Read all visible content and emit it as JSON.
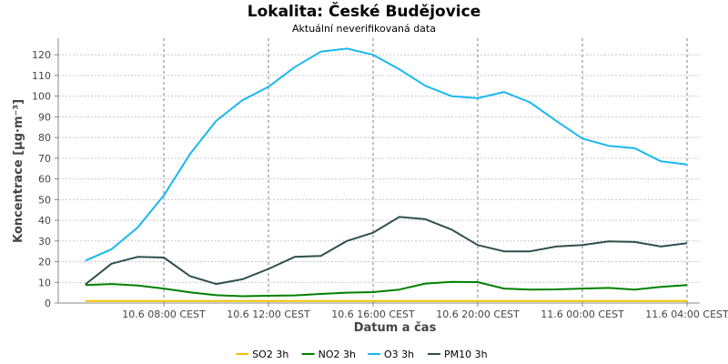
{
  "chart_data": {
    "type": "line",
    "title": "Lokalita: České Budějovice",
    "subtitle": "Aktuální neverifikovaná data",
    "xlabel": "Datum a čas",
    "ylabel": "Koncentrace [µg·m⁻³]",
    "ylim": [
      0,
      128
    ],
    "xlim": [
      "10.6 05:00",
      "11.6 05:00"
    ],
    "y_ticks": [
      0,
      10,
      20,
      30,
      40,
      50,
      60,
      70,
      80,
      90,
      100,
      110,
      120
    ],
    "x_tick_labels": [
      "10.6 08:00 CEST",
      "10.6 12:00 CEST",
      "10.6 16:00 CEST",
      "10.6 20:00 CEST",
      "11.6 00:00 CEST",
      "11.6 04:00 CEST"
    ],
    "grid": true,
    "legend_position": "bottom",
    "x": [
      "10.6 05:00",
      "10.6 06:00",
      "10.6 07:00",
      "10.6 08:00",
      "10.6 09:00",
      "10.6 10:00",
      "10.6 11:00",
      "10.6 12:00",
      "10.6 13:00",
      "10.6 14:00",
      "10.6 15:00",
      "10.6 16:00",
      "10.6 17:00",
      "10.6 18:00",
      "10.6 19:00",
      "10.6 20:00",
      "10.6 21:00",
      "10.6 22:00",
      "10.6 23:00",
      "11.6 00:00",
      "11.6 01:00",
      "11.6 02:00",
      "11.6 03:00",
      "11.6 04:00"
    ],
    "series": [
      {
        "name": "SO2 3h",
        "color": "#f2c300",
        "values": [
          1,
          1,
          1,
          1,
          1,
          1,
          1,
          1,
          1,
          1,
          1,
          1,
          1,
          1,
          1,
          1,
          1,
          1,
          1,
          1,
          1,
          1,
          1,
          1
        ]
      },
      {
        "name": "NO2 3h",
        "color": "#008000",
        "values": [
          8.7,
          9.2,
          8.5,
          7.0,
          5.2,
          3.8,
          3.3,
          3.5,
          3.7,
          4.4,
          5.0,
          5.3,
          6.5,
          9.4,
          10.2,
          10.1,
          7.0,
          6.5,
          6.6,
          7.0,
          7.3,
          6.5,
          7.8,
          8.7
        ]
      },
      {
        "name": "O3 3h",
        "color": "#1ab8ee",
        "values": [
          20.5,
          26,
          36.5,
          52,
          72,
          88,
          98,
          104.5,
          114,
          121.5,
          123,
          120,
          113,
          105,
          100,
          99,
          102,
          97,
          88,
          79.5,
          76,
          74.8,
          68.5,
          67
        ]
      },
      {
        "name": "PM10 3h",
        "color": "#2f4f4f",
        "values": [
          9,
          19,
          22.3,
          22,
          13,
          9.2,
          11.5,
          16.5,
          22.3,
          22.8,
          30,
          34,
          41.6,
          40.5,
          35.5,
          28,
          25,
          25,
          27.3,
          28,
          29.8,
          29.5,
          27.3,
          28.9
        ]
      }
    ]
  }
}
